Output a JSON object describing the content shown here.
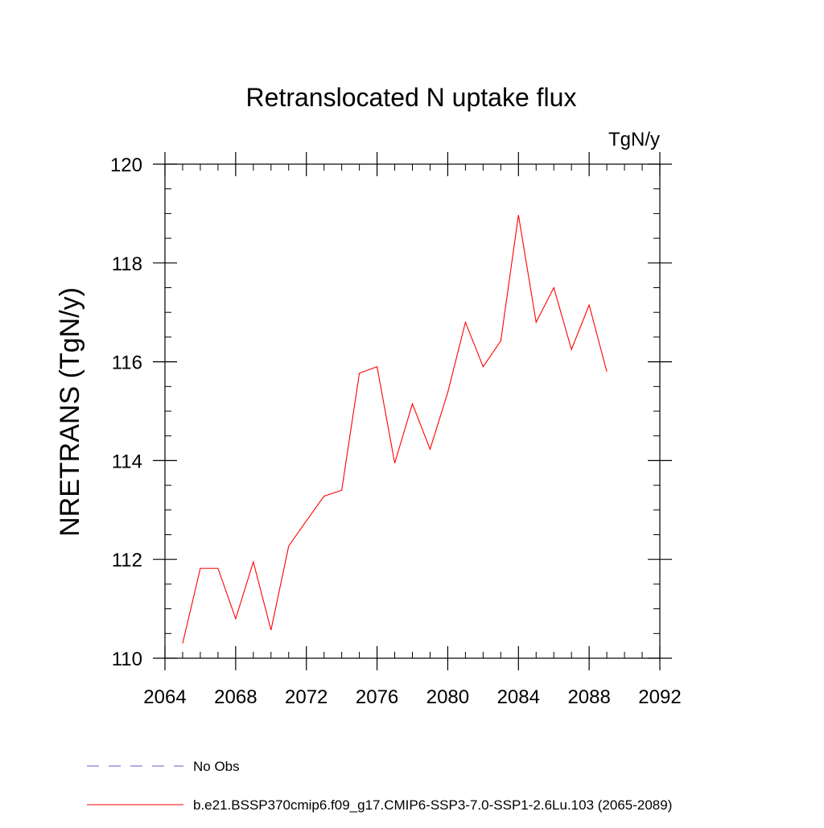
{
  "chart_data": {
    "type": "line",
    "title": "Retranslocated N uptake flux",
    "units": "TgN/y",
    "xlabel": "",
    "ylabel": "NRETRANS  (TgN/y)",
    "xlim": [
      2064,
      2092
    ],
    "ylim": [
      110,
      120
    ],
    "x_major_ticks": [
      2064,
      2068,
      2072,
      2076,
      2080,
      2084,
      2088,
      2092
    ],
    "x_tick_labels": [
      "2064",
      "2068",
      "2072",
      "2076",
      "2080",
      "2084",
      "2088",
      "2092"
    ],
    "x_minor_step": 1,
    "y_major_ticks": [
      110,
      112,
      114,
      116,
      118,
      120
    ],
    "y_tick_labels": [
      "110",
      "112",
      "114",
      "116",
      "118",
      "120"
    ],
    "y_minor_step": 0.5,
    "grid": false,
    "legend_position": "bottom-left, below plot",
    "legend": [
      {
        "label": "No Obs",
        "style": "dashed",
        "color": "#6a5acd"
      },
      {
        "label": "b.e21.BSSP370cmip6.f09_g17.CMIP6-SSP3-7.0-SSP1-2.6Lu.103 (2065-2089)",
        "style": "solid",
        "color": "#ff0000"
      }
    ],
    "series": [
      {
        "name": "b.e21.BSSP370cmip6.f09_g17.CMIP6-SSP3-7.0-SSP1-2.6Lu.103 (2065-2089)",
        "color": "#ff0000",
        "x": [
          2065,
          2066,
          2067,
          2068,
          2069,
          2070,
          2071,
          2072,
          2073,
          2074,
          2075,
          2076,
          2077,
          2078,
          2079,
          2080,
          2081,
          2082,
          2083,
          2084,
          2085,
          2086,
          2087,
          2088,
          2089
        ],
        "y": [
          110.3,
          111.82,
          111.82,
          110.8,
          111.95,
          110.57,
          112.27,
          112.78,
          113.28,
          113.4,
          115.77,
          115.9,
          113.95,
          115.15,
          114.23,
          115.38,
          116.8,
          115.9,
          116.42,
          118.97,
          116.8,
          117.5,
          116.25,
          117.15,
          115.8
        ]
      }
    ]
  }
}
